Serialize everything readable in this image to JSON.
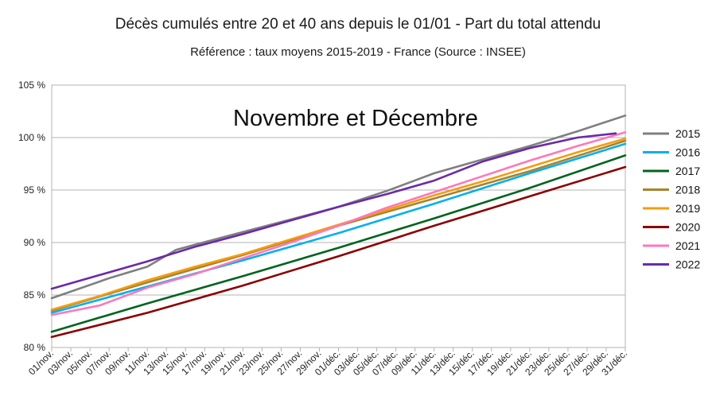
{
  "chart_data": {
    "type": "line",
    "title": "Décès cumulés entre 20 et 40 ans depuis le 01/01 - Part du total attendu",
    "subtitle": "Référence : taux moyens 2015-2019 - France  (Source : INSEE)",
    "annotation": "Novembre et Décembre",
    "y_ticks": [
      "80 %",
      "85 %",
      "90 %",
      "95 %",
      "100 %",
      "105 %"
    ],
    "ylim": [
      80,
      105
    ],
    "x_tick_labels": [
      "01/nov.",
      "03/nov.",
      "05/nov.",
      "07/nov.",
      "09/nov.",
      "11/nov.",
      "13/nov.",
      "15/nov.",
      "17/nov.",
      "19/nov.",
      "21/nov.",
      "23/nov.",
      "25/nov.",
      "27/nov.",
      "29/nov.",
      "01/déc.",
      "03/déc.",
      "05/déc.",
      "07/déc.",
      "09/déc.",
      "11/déc.",
      "13/déc.",
      "15/déc.",
      "17/déc.",
      "19/déc.",
      "21/déc.",
      "23/déc.",
      "25/déc.",
      "27/déc.",
      "29/déc.",
      "31/déc."
    ],
    "x_range_days": [
      0,
      60
    ],
    "grid": "horizontal",
    "legend_position": "right",
    "series": [
      {
        "name": "2015",
        "color": "#7f7f7f",
        "x": [
          0,
          6,
          10,
          13,
          15,
          20,
          25,
          30,
          35,
          40,
          45,
          50,
          55,
          60
        ],
        "y": [
          84.7,
          86.6,
          87.7,
          89.3,
          89.8,
          91.0,
          92.2,
          93.4,
          94.9,
          96.6,
          97.9,
          99.2,
          100.6,
          102.1
        ]
      },
      {
        "name": "2016",
        "color": "#00b0f0",
        "x": [
          0,
          10,
          20,
          30,
          40,
          50,
          60
        ],
        "y": [
          83.3,
          85.8,
          88.3,
          90.9,
          93.7,
          96.6,
          99.4
        ]
      },
      {
        "name": "2017",
        "color": "#00641e",
        "x": [
          0,
          10,
          20,
          30,
          40,
          50,
          60
        ],
        "y": [
          81.5,
          84.2,
          86.8,
          89.5,
          92.3,
          95.2,
          98.3
        ]
      },
      {
        "name": "2018",
        "color": "#a8832a",
        "x": [
          0,
          10,
          20,
          30,
          40,
          50,
          60
        ],
        "y": [
          83.5,
          86.2,
          88.8,
          91.6,
          94.2,
          96.8,
          99.7
        ]
      },
      {
        "name": "2019",
        "color": "#f39c12",
        "x": [
          0,
          5,
          10,
          15,
          20,
          25,
          30,
          35,
          40,
          45,
          50,
          55,
          60
        ],
        "y": [
          83.6,
          84.9,
          86.4,
          87.7,
          88.9,
          90.3,
          91.7,
          93.1,
          94.5,
          95.8,
          97.2,
          98.6,
          99.9
        ]
      },
      {
        "name": "2020",
        "color": "#8b0000",
        "x": [
          0,
          10,
          20,
          30,
          40,
          50,
          60
        ],
        "y": [
          81.0,
          83.3,
          85.9,
          88.7,
          91.6,
          94.4,
          97.2
        ]
      },
      {
        "name": "2021",
        "color": "#ff77bb",
        "x": [
          0,
          5,
          10,
          15,
          20,
          25,
          30,
          35,
          40,
          45,
          50,
          55,
          60
        ],
        "y": [
          83.1,
          84.0,
          85.7,
          87.0,
          88.5,
          90.0,
          91.6,
          93.3,
          94.8,
          96.3,
          97.8,
          99.2,
          100.5
        ]
      },
      {
        "name": "2022",
        "color": "#6a2aa8",
        "x": [
          0,
          5,
          10,
          15,
          20,
          25,
          30,
          35,
          40,
          45,
          50,
          55,
          59
        ],
        "y": [
          85.6,
          86.9,
          88.2,
          89.6,
          90.8,
          92.1,
          93.4,
          94.6,
          95.9,
          97.7,
          99.0,
          100.0,
          100.4
        ]
      }
    ]
  }
}
